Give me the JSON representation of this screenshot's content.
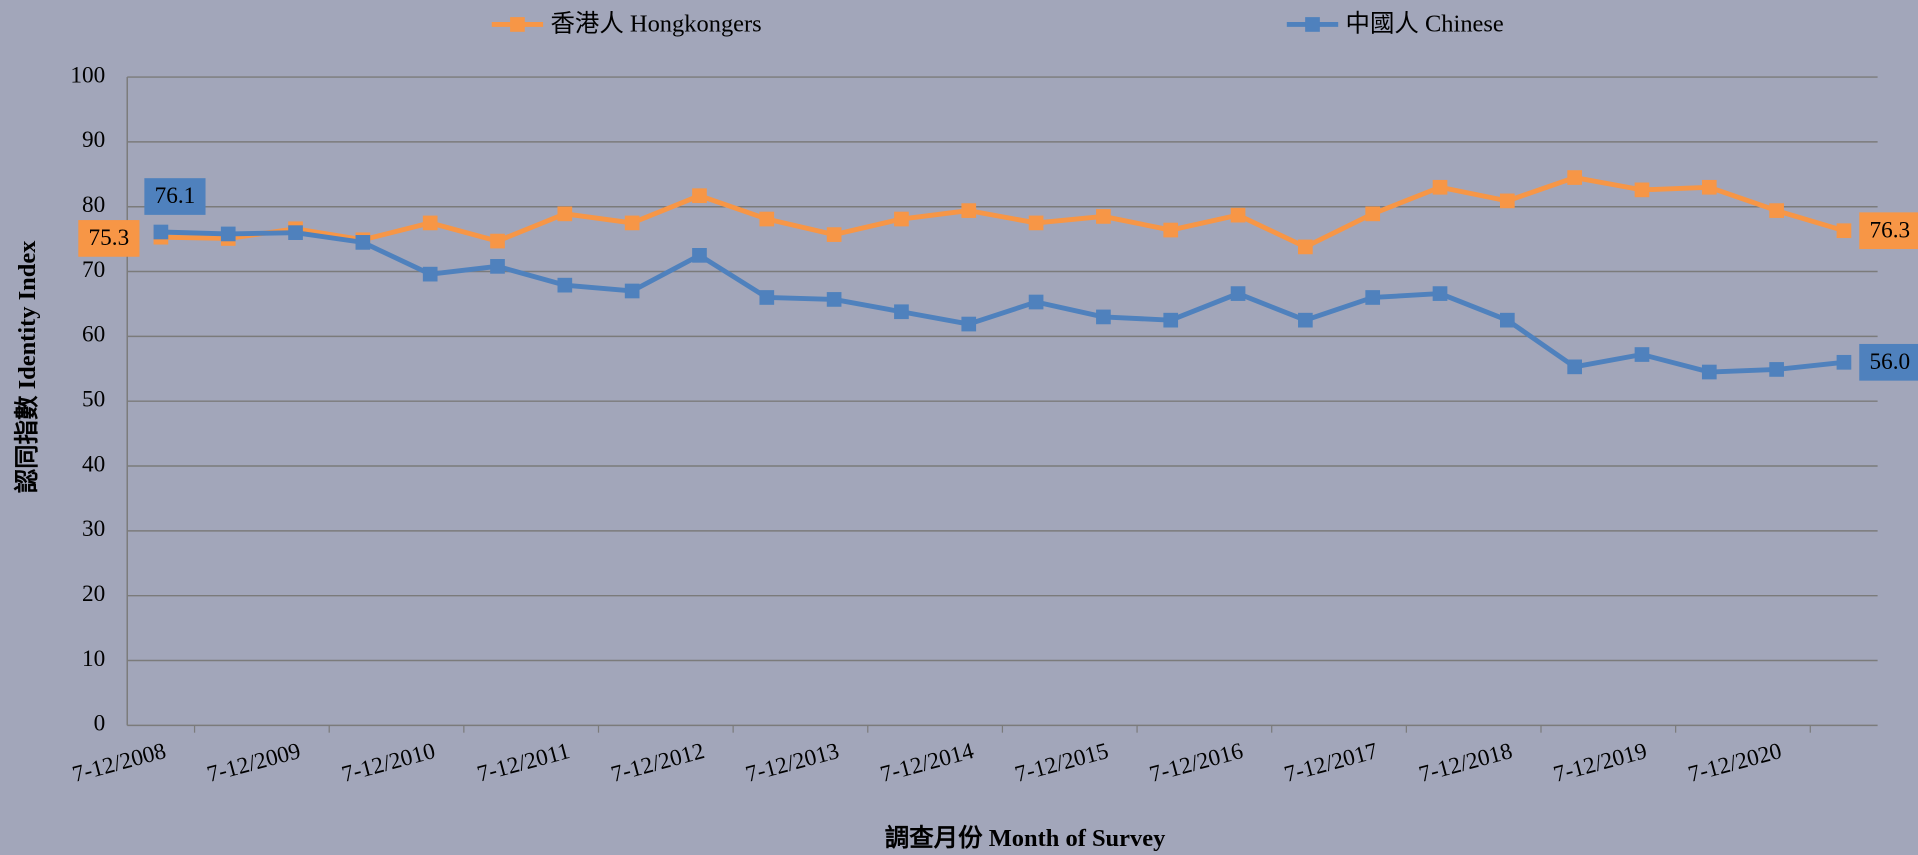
{
  "chart_data": {
    "type": "line",
    "x_label": "調查月份 Month of Survey",
    "y_label": "認同指數 Identity Index",
    "categories": [
      "7-12/2008",
      null,
      "7-12/2009",
      null,
      "7-12/2010",
      null,
      "7-12/2011",
      null,
      "7-12/2012",
      null,
      "7-12/2013",
      null,
      "7-12/2014",
      null,
      "7-12/2015",
      null,
      "7-12/2016",
      null,
      "7-12/2017",
      null,
      "7-12/2018",
      null,
      "7-12/2019",
      null,
      "7-12/2020",
      null
    ],
    "series": [
      {
        "name": "香港人 Hongkongers",
        "color": "#f79646",
        "marker": "square",
        "values": [
          75.3,
          75.1,
          76.6,
          74.9,
          77.5,
          74.7,
          78.9,
          77.5,
          81.7,
          78.1,
          75.7,
          78.1,
          79.4,
          77.5,
          78.5,
          76.4,
          78.7,
          73.8,
          78.9,
          83.0,
          80.9,
          84.5,
          82.6,
          83.0,
          79.4,
          76.3
        ],
        "value_labels": [
          "75.3",
          null,
          null,
          null,
          null,
          null,
          null,
          null,
          null,
          null,
          null,
          null,
          null,
          null,
          null,
          null,
          null,
          null,
          null,
          null,
          null,
          null,
          null,
          null,
          null,
          "76.3"
        ]
      },
      {
        "name": "中國人 Chinese",
        "color": "#4f81bd",
        "marker": "square",
        "values": [
          76.1,
          75.8,
          76.0,
          74.5,
          69.6,
          70.8,
          67.9,
          67.0,
          72.5,
          66.0,
          65.7,
          63.8,
          61.9,
          65.3,
          63.0,
          62.5,
          66.6,
          62.5,
          66.0,
          66.6,
          62.5,
          55.3,
          57.2,
          54.5,
          54.9,
          56.0
        ],
        "value_labels": [
          "76.1",
          null,
          null,
          null,
          null,
          null,
          null,
          null,
          null,
          null,
          null,
          null,
          null,
          null,
          null,
          null,
          null,
          null,
          null,
          null,
          null,
          null,
          null,
          null,
          null,
          "56.0"
        ]
      }
    ],
    "ylim": [
      0,
      100
    ],
    "yticks": [
      0,
      10,
      20,
      30,
      40,
      50,
      60,
      70,
      80,
      90,
      100
    ],
    "grid": true,
    "legend": "top"
  }
}
